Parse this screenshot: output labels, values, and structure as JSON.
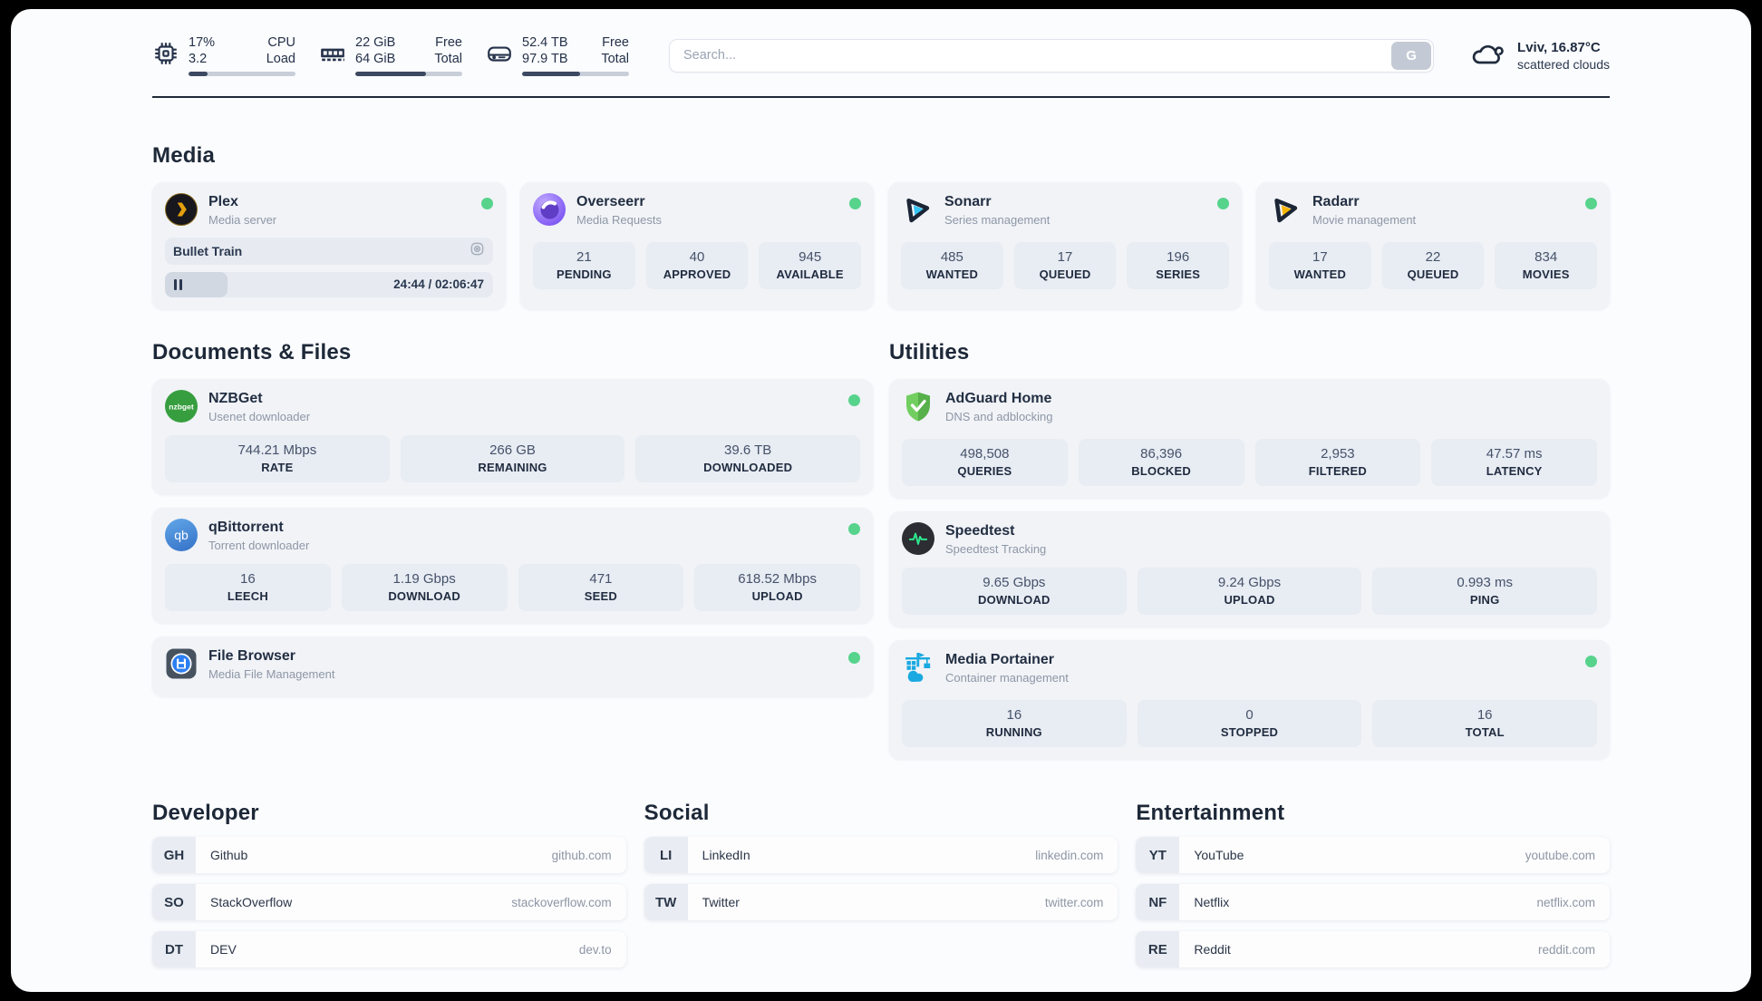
{
  "colors": {
    "status_online": "#57d38c",
    "accent_dark": "#1f2937",
    "card_bg": "#f1f3f7"
  },
  "header": {
    "metrics": [
      {
        "icon": "cpu-icon",
        "value1": "17%",
        "label1": "CPU",
        "value2": "3.2",
        "label2": "Load",
        "progress": 18
      },
      {
        "icon": "memory-icon",
        "value1": "22 GiB",
        "label1": "Free",
        "value2": "64 GiB",
        "label2": "Total",
        "progress": 66
      },
      {
        "icon": "disk-icon",
        "value1": "52.4 TB",
        "label1": "Free",
        "value2": "97.9 TB",
        "label2": "Total",
        "progress": 54
      }
    ],
    "search": {
      "placeholder": "Search...",
      "button_label": "G"
    },
    "weather": {
      "location_temp": "Lviv, 16.87°C",
      "condition": "scattered clouds"
    }
  },
  "sections": {
    "media": {
      "title": "Media",
      "plex": {
        "name": "Plex",
        "description": "Media server",
        "online": true,
        "now_playing": "Bullet Train",
        "time_display": "24:44 / 02:06:47",
        "progress_percent": 19
      },
      "overseerr": {
        "name": "Overseerr",
        "description": "Media Requests",
        "online": true,
        "stats": [
          {
            "value": "21",
            "label": "PENDING"
          },
          {
            "value": "40",
            "label": "APPROVED"
          },
          {
            "value": "945",
            "label": "AVAILABLE"
          }
        ]
      },
      "sonarr": {
        "name": "Sonarr",
        "description": "Series management",
        "online": true,
        "stats": [
          {
            "value": "485",
            "label": "WANTED"
          },
          {
            "value": "17",
            "label": "QUEUED"
          },
          {
            "value": "196",
            "label": "SERIES"
          }
        ]
      },
      "radarr": {
        "name": "Radarr",
        "description": "Movie management",
        "online": true,
        "stats": [
          {
            "value": "17",
            "label": "WANTED"
          },
          {
            "value": "22",
            "label": "QUEUED"
          },
          {
            "value": "834",
            "label": "MOVIES"
          }
        ]
      }
    },
    "documents": {
      "title": "Documents & Files",
      "nzbget": {
        "name": "NZBGet",
        "description": "Usenet downloader",
        "online": true,
        "icon_text": "nzbget",
        "stats": [
          {
            "value": "744.21 Mbps",
            "label": "RATE"
          },
          {
            "value": "266 GB",
            "label": "REMAINING"
          },
          {
            "value": "39.6 TB",
            "label": "DOWNLOADED"
          }
        ]
      },
      "qbittorrent": {
        "name": "qBittorrent",
        "description": "Torrent downloader",
        "online": true,
        "icon_text": "qb",
        "stats": [
          {
            "value": "16",
            "label": "LEECH"
          },
          {
            "value": "1.19 Gbps",
            "label": "DOWNLOAD"
          },
          {
            "value": "471",
            "label": "SEED"
          },
          {
            "value": "618.52 Mbps",
            "label": "UPLOAD"
          }
        ]
      },
      "filebrowser": {
        "name": "File Browser",
        "description": "Media File Management",
        "online": true
      }
    },
    "utilities": {
      "title": "Utilities",
      "adguard": {
        "name": "AdGuard Home",
        "description": "DNS and adblocking",
        "stats": [
          {
            "value": "498,508",
            "label": "QUERIES"
          },
          {
            "value": "86,396",
            "label": "BLOCKED"
          },
          {
            "value": "2,953",
            "label": "FILTERED"
          },
          {
            "value": "47.57 ms",
            "label": "LATENCY"
          }
        ]
      },
      "speedtest": {
        "name": "Speedtest",
        "description": "Speedtest Tracking",
        "stats": [
          {
            "value": "9.65 Gbps",
            "label": "DOWNLOAD"
          },
          {
            "value": "9.24 Gbps",
            "label": "UPLOAD"
          },
          {
            "value": "0.993 ms",
            "label": "PING"
          }
        ]
      },
      "portainer": {
        "name": "Media Portainer",
        "description": "Container management",
        "online": true,
        "stats": [
          {
            "value": "16",
            "label": "RUNNING"
          },
          {
            "value": "0",
            "label": "STOPPED"
          },
          {
            "value": "16",
            "label": "TOTAL"
          }
        ]
      }
    },
    "bookmarks": {
      "developer": {
        "title": "Developer",
        "links": [
          {
            "abbr": "GH",
            "name": "Github",
            "domain": "github.com"
          },
          {
            "abbr": "SO",
            "name": "StackOverflow",
            "domain": "stackoverflow.com"
          },
          {
            "abbr": "DT",
            "name": "DEV",
            "domain": "dev.to"
          }
        ]
      },
      "social": {
        "title": "Social",
        "links": [
          {
            "abbr": "LI",
            "name": "LinkedIn",
            "domain": "linkedin.com"
          },
          {
            "abbr": "TW",
            "name": "Twitter",
            "domain": "twitter.com"
          }
        ]
      },
      "entertainment": {
        "title": "Entertainment",
        "links": [
          {
            "abbr": "YT",
            "name": "YouTube",
            "domain": "youtube.com"
          },
          {
            "abbr": "NF",
            "name": "Netflix",
            "domain": "netflix.com"
          },
          {
            "abbr": "RE",
            "name": "Reddit",
            "domain": "reddit.com"
          }
        ]
      }
    }
  }
}
